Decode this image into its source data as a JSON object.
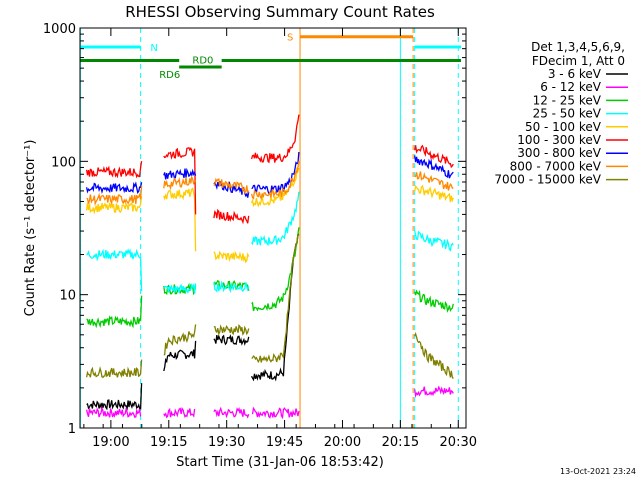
{
  "title": "RHESSI Observing Summary Count Rates",
  "footer_date": "13-Oct-2021 23:24",
  "chart_data": {
    "type": "line",
    "title": "RHESSI Observing Summary Count Rates",
    "xlabel": "Start Time (31-Jan-06 18:53:42)",
    "ylabel": "Count Rate (s⁻¹ detector⁻¹)",
    "y_scale": "log",
    "ylim": [
      1,
      1000
    ],
    "xlim_minutes_since_start": [
      -1.7,
      98.3
    ],
    "x_ticks": [
      {
        "label": "19:00",
        "minutes": 6.3
      },
      {
        "label": "19:15",
        "minutes": 21.3
      },
      {
        "label": "19:30",
        "minutes": 36.3
      },
      {
        "label": "19:45",
        "minutes": 51.3
      },
      {
        "label": "20:00",
        "minutes": 66.3
      },
      {
        "label": "20:15",
        "minutes": 81.3
      },
      {
        "label": "20:30",
        "minutes": 96.3
      }
    ],
    "y_ticks": [
      {
        "label": "1",
        "value": 1
      },
      {
        "label": "10",
        "value": 10
      },
      {
        "label": "100",
        "value": 100
      },
      {
        "label": "1000",
        "value": 1000
      }
    ],
    "legend_header": [
      "Det 1,3,4,5,6,9,",
      "FDecim 1, Att 0"
    ],
    "legend_position": "right",
    "gaps": [
      [
        14,
        20
      ],
      [
        28,
        33
      ],
      [
        42,
        42.8
      ],
      [
        55,
        85
      ]
    ],
    "series": [
      {
        "name": "3 - 6 keV",
        "color": "#000000",
        "points": [
          [
            0,
            1.5
          ],
          [
            14,
            1.5
          ],
          [
            14.2,
            2.2
          ],
          [
            20,
            2.6
          ],
          [
            21,
            3.5
          ],
          [
            28,
            3.6
          ],
          [
            28.2,
            4.6
          ],
          [
            42,
            4.6
          ],
          [
            42.8,
            2.5
          ],
          [
            49,
            2.5
          ],
          [
            51,
            2.6
          ],
          [
            52.5,
            8
          ],
          [
            53.5,
            18
          ],
          [
            55,
            28
          ]
        ]
      },
      {
        "name": "6 - 12 keV",
        "color": "#ff00ff",
        "points": [
          [
            0,
            1.3
          ],
          [
            14,
            1.3
          ],
          [
            28,
            1.3
          ],
          [
            42,
            1.3
          ],
          [
            55,
            1.3
          ],
          [
            85.5,
            1.9
          ],
          [
            95,
            1.9
          ]
        ]
      },
      {
        "name": "12 - 25 keV",
        "color": "#00cc00",
        "points": [
          [
            0,
            6.3
          ],
          [
            14,
            6.3
          ],
          [
            14.2,
            10
          ],
          [
            20,
            11
          ],
          [
            28,
            11
          ],
          [
            28.2,
            12
          ],
          [
            42,
            11.5
          ],
          [
            42.8,
            8
          ],
          [
            49,
            8.5
          ],
          [
            51,
            9.5
          ],
          [
            52.5,
            13
          ],
          [
            54,
            20
          ],
          [
            55,
            30
          ],
          [
            85.5,
            10
          ],
          [
            88,
            9
          ],
          [
            95,
            8
          ]
        ]
      },
      {
        "name": "25 - 50 keV",
        "color": "#00ffff",
        "points": [
          [
            0,
            20
          ],
          [
            14,
            20
          ],
          [
            14.2,
            11
          ],
          [
            28,
            11
          ],
          [
            28.2,
            11.5
          ],
          [
            42,
            11.5
          ],
          [
            42.8,
            25
          ],
          [
            49,
            25.5
          ],
          [
            51,
            27
          ],
          [
            52.5,
            33
          ],
          [
            54,
            42
          ],
          [
            55,
            55
          ],
          [
            85.5,
            28
          ],
          [
            88,
            26
          ],
          [
            95,
            23
          ]
        ]
      },
      {
        "name": "50 - 100 keV",
        "color": "#ffcc00",
        "points": [
          [
            0,
            45
          ],
          [
            14,
            45
          ],
          [
            14.2,
            55
          ],
          [
            28,
            58
          ],
          [
            28.2,
            20
          ],
          [
            42,
            19
          ],
          [
            42.8,
            50
          ],
          [
            49,
            51
          ],
          [
            51,
            54
          ],
          [
            52.5,
            62
          ],
          [
            54,
            75
          ],
          [
            55,
            95
          ],
          [
            85.5,
            62
          ],
          [
            88,
            60
          ],
          [
            95,
            52
          ]
        ]
      },
      {
        "name": "100 - 300 keV",
        "color": "#ff0000",
        "points": [
          [
            0,
            83
          ],
          [
            14,
            83
          ],
          [
            14.2,
            100
          ],
          [
            20,
            112
          ],
          [
            28,
            118
          ],
          [
            28.2,
            42
          ],
          [
            42,
            37
          ],
          [
            42.8,
            108
          ],
          [
            49,
            106
          ],
          [
            51,
            108
          ],
          [
            52.5,
            118
          ],
          [
            54,
            150
          ],
          [
            55,
            220
          ],
          [
            85.5,
            125
          ],
          [
            88,
            118
          ],
          [
            95,
            95
          ]
        ]
      },
      {
        "name": "300 - 800 keV",
        "color": "#0000ff",
        "points": [
          [
            0,
            63
          ],
          [
            14,
            63
          ],
          [
            14.2,
            75
          ],
          [
            28,
            83
          ],
          [
            28.2,
            78
          ],
          [
            42,
            57
          ],
          [
            42.8,
            62
          ],
          [
            49,
            62
          ],
          [
            51,
            64
          ],
          [
            52.5,
            70
          ],
          [
            54,
            85
          ],
          [
            55,
            110
          ],
          [
            85.5,
            103
          ],
          [
            88,
            98
          ],
          [
            95,
            78
          ]
        ]
      },
      {
        "name": "800 - 7000 keV",
        "color": "#ff8800",
        "points": [
          [
            0,
            52
          ],
          [
            14,
            52
          ],
          [
            14.2,
            63
          ],
          [
            28,
            72
          ],
          [
            28.2,
            75
          ],
          [
            42,
            62
          ],
          [
            42.8,
            57
          ],
          [
            49,
            57
          ],
          [
            51,
            58
          ],
          [
            52.5,
            65
          ],
          [
            54,
            80
          ],
          [
            55,
            100
          ],
          [
            85.5,
            80
          ],
          [
            88,
            75
          ],
          [
            95,
            63
          ]
        ]
      },
      {
        "name": "7000 - 15000 keV",
        "color": "#808000",
        "points": [
          [
            0,
            2.6
          ],
          [
            14,
            2.6
          ],
          [
            14.2,
            3.2
          ],
          [
            20,
            3.6
          ],
          [
            21,
            4.5
          ],
          [
            28,
            5
          ],
          [
            28.2,
            5.6
          ],
          [
            42,
            5.4
          ],
          [
            42.8,
            3.2
          ],
          [
            49,
            3.3
          ],
          [
            51,
            3.6
          ],
          [
            52.5,
            9
          ],
          [
            53.5,
            18
          ],
          [
            55,
            28
          ],
          [
            85.5,
            5
          ],
          [
            88,
            3.5
          ],
          [
            95,
            2.5
          ]
        ]
      }
    ],
    "vertical_lines": [
      {
        "minutes": -1.6,
        "color": "#00ffff",
        "style": "solid"
      },
      {
        "minutes": 14,
        "color": "#00ffff",
        "style": "dashed"
      },
      {
        "minutes": 85,
        "color": "#00ffff",
        "style": "dashed"
      },
      {
        "minutes": 96.3,
        "color": "#00ffff",
        "style": "dashed"
      },
      {
        "minutes": 55.3,
        "color": "#ff8800",
        "style": "solid"
      },
      {
        "minutes": 81.3,
        "color": "#00ffff",
        "style": "solid"
      },
      {
        "minutes": 84.6,
        "color": "#ff8800",
        "style": "dashed"
      }
    ],
    "flag_bars": [
      {
        "label": "N",
        "color": "#00ffff",
        "level": 720,
        "segments": [
          [
            -1.6,
            14
          ],
          [
            85,
            97
          ]
        ]
      },
      {
        "label": "S",
        "color": "#ff8800",
        "level": 860,
        "segments": [
          [
            55.3,
            84.6
          ]
        ]
      },
      {
        "label": "RD0",
        "color": "#008800",
        "level": 570,
        "segments": [
          [
            -1.6,
            24
          ]
        ]
      },
      {
        "label": "RD6",
        "color": "#008800",
        "level": 510,
        "segments": [
          [
            24,
            35
          ]
        ]
      },
      {
        "label": "",
        "color": "#008800",
        "level": 570,
        "segments": [
          [
            35,
            97
          ]
        ]
      }
    ]
  }
}
